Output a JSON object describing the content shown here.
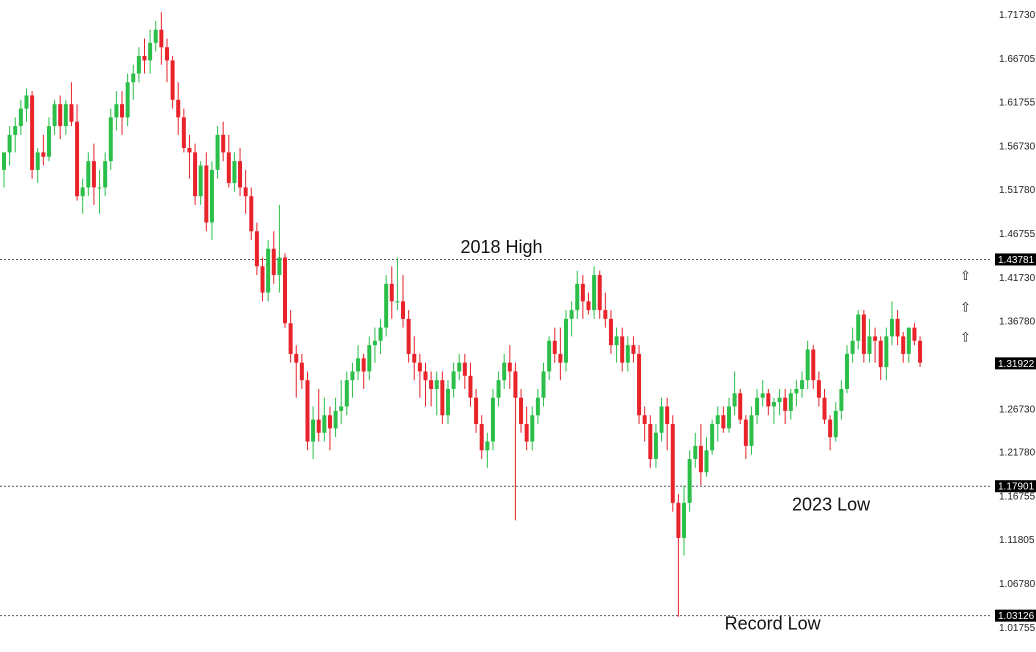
{
  "chart_data": {
    "type": "candlestick",
    "colors": {
      "up": "#2bbf4a",
      "down": "#e8232a",
      "hline": "#555555",
      "marker_bg": "#000000"
    },
    "ylim": [
      1.0126,
      1.7248
    ],
    "yticks": [
      "1.71730",
      "1.66705",
      "1.61755",
      "1.56730",
      "1.51780",
      "1.46755",
      "1.41730",
      "1.36780",
      "1.26730",
      "1.21780",
      "1.16755",
      "1.11805",
      "1.06780",
      "1.01755"
    ],
    "hlines": [
      {
        "value": 1.43781,
        "label": "1.43781"
      },
      {
        "value": 1.17901,
        "label": "1.17901"
      },
      {
        "value": 1.03126,
        "label": "1.03126"
      }
    ],
    "price_marker": {
      "value": 1.31922,
      "label": "1.31922"
    },
    "annotations": [
      {
        "text": "2018 High",
        "price": 1.452,
        "index": 83
      },
      {
        "text": "2023 Low",
        "price": 1.158,
        "index": 142
      },
      {
        "text": "Record Low",
        "price": 1.0225,
        "index": 130
      }
    ],
    "arrows": [
      {
        "glyph": "⇧",
        "price": 1.42
      },
      {
        "glyph": "⇧",
        "price": 1.384
      },
      {
        "glyph": "⇧",
        "price": 1.35
      }
    ],
    "candles": [
      [
        1.54,
        1.56,
        1.52,
        1.56
      ],
      [
        1.56,
        1.59,
        1.545,
        1.58
      ],
      [
        1.58,
        1.6,
        1.56,
        1.59
      ],
      [
        1.59,
        1.62,
        1.58,
        1.61
      ],
      [
        1.61,
        1.633,
        1.595,
        1.625
      ],
      [
        1.625,
        1.63,
        1.53,
        1.54
      ],
      [
        1.54,
        1.565,
        1.525,
        1.56
      ],
      [
        1.56,
        1.58,
        1.545,
        1.555
      ],
      [
        1.555,
        1.6,
        1.55,
        1.59
      ],
      [
        1.59,
        1.62,
        1.58,
        1.615
      ],
      [
        1.615,
        1.625,
        1.575,
        1.59
      ],
      [
        1.59,
        1.62,
        1.58,
        1.615
      ],
      [
        1.615,
        1.64,
        1.59,
        1.595
      ],
      [
        1.595,
        1.615,
        1.505,
        1.51
      ],
      [
        1.51,
        1.53,
        1.49,
        1.52
      ],
      [
        1.52,
        1.56,
        1.51,
        1.55
      ],
      [
        1.55,
        1.57,
        1.5,
        1.52
      ],
      [
        1.52,
        1.54,
        1.49,
        1.52
      ],
      [
        1.52,
        1.56,
        1.51,
        1.55
      ],
      [
        1.55,
        1.61,
        1.54,
        1.6
      ],
      [
        1.6,
        1.63,
        1.585,
        1.615
      ],
      [
        1.615,
        1.63,
        1.58,
        1.6
      ],
      [
        1.6,
        1.65,
        1.59,
        1.64
      ],
      [
        1.64,
        1.66,
        1.62,
        1.65
      ],
      [
        1.65,
        1.68,
        1.64,
        1.67
      ],
      [
        1.67,
        1.69,
        1.65,
        1.665
      ],
      [
        1.665,
        1.7,
        1.65,
        1.685
      ],
      [
        1.685,
        1.71,
        1.675,
        1.7
      ],
      [
        1.7,
        1.72,
        1.66,
        1.68
      ],
      [
        1.68,
        1.69,
        1.64,
        1.665
      ],
      [
        1.665,
        1.67,
        1.61,
        1.62
      ],
      [
        1.62,
        1.64,
        1.58,
        1.6
      ],
      [
        1.6,
        1.61,
        1.56,
        1.565
      ],
      [
        1.565,
        1.58,
        1.53,
        1.56
      ],
      [
        1.56,
        1.57,
        1.5,
        1.51
      ],
      [
        1.51,
        1.55,
        1.5,
        1.545
      ],
      [
        1.545,
        1.56,
        1.47,
        1.48
      ],
      [
        1.48,
        1.55,
        1.46,
        1.54
      ],
      [
        1.54,
        1.59,
        1.53,
        1.58
      ],
      [
        1.58,
        1.595,
        1.55,
        1.56
      ],
      [
        1.56,
        1.58,
        1.52,
        1.525
      ],
      [
        1.525,
        1.56,
        1.515,
        1.55
      ],
      [
        1.55,
        1.565,
        1.51,
        1.52
      ],
      [
        1.52,
        1.54,
        1.49,
        1.51
      ],
      [
        1.51,
        1.52,
        1.46,
        1.47
      ],
      [
        1.47,
        1.48,
        1.42,
        1.43
      ],
      [
        1.43,
        1.44,
        1.39,
        1.4
      ],
      [
        1.4,
        1.46,
        1.39,
        1.45
      ],
      [
        1.45,
        1.47,
        1.41,
        1.42
      ],
      [
        1.42,
        1.5,
        1.4,
        1.44
      ],
      [
        1.44,
        1.445,
        1.36,
        1.365
      ],
      [
        1.365,
        1.38,
        1.32,
        1.33
      ],
      [
        1.33,
        1.34,
        1.28,
        1.32
      ],
      [
        1.32,
        1.33,
        1.29,
        1.3
      ],
      [
        1.3,
        1.31,
        1.22,
        1.23
      ],
      [
        1.23,
        1.27,
        1.21,
        1.255
      ],
      [
        1.255,
        1.29,
        1.23,
        1.24
      ],
      [
        1.24,
        1.28,
        1.23,
        1.26
      ],
      [
        1.26,
        1.27,
        1.22,
        1.245
      ],
      [
        1.245,
        1.28,
        1.235,
        1.265
      ],
      [
        1.265,
        1.3,
        1.25,
        1.27
      ],
      [
        1.27,
        1.31,
        1.26,
        1.3
      ],
      [
        1.3,
        1.32,
        1.28,
        1.31
      ],
      [
        1.31,
        1.34,
        1.3,
        1.325
      ],
      [
        1.325,
        1.33,
        1.29,
        1.31
      ],
      [
        1.31,
        1.35,
        1.3,
        1.34
      ],
      [
        1.34,
        1.36,
        1.32,
        1.345
      ],
      [
        1.345,
        1.37,
        1.33,
        1.36
      ],
      [
        1.36,
        1.42,
        1.35,
        1.41
      ],
      [
        1.41,
        1.43,
        1.37,
        1.39
      ],
      [
        1.39,
        1.44,
        1.38,
        1.39
      ],
      [
        1.39,
        1.42,
        1.36,
        1.37
      ],
      [
        1.37,
        1.38,
        1.32,
        1.33
      ],
      [
        1.33,
        1.35,
        1.3,
        1.32
      ],
      [
        1.32,
        1.33,
        1.28,
        1.31
      ],
      [
        1.31,
        1.32,
        1.27,
        1.3
      ],
      [
        1.3,
        1.31,
        1.27,
        1.29
      ],
      [
        1.29,
        1.31,
        1.26,
        1.3
      ],
      [
        1.3,
        1.31,
        1.25,
        1.26
      ],
      [
        1.26,
        1.3,
        1.25,
        1.29
      ],
      [
        1.29,
        1.32,
        1.28,
        1.31
      ],
      [
        1.31,
        1.33,
        1.3,
        1.32
      ],
      [
        1.32,
        1.33,
        1.29,
        1.305
      ],
      [
        1.305,
        1.32,
        1.27,
        1.28
      ],
      [
        1.28,
        1.29,
        1.24,
        1.25
      ],
      [
        1.25,
        1.26,
        1.21,
        1.22
      ],
      [
        1.22,
        1.24,
        1.2,
        1.23
      ],
      [
        1.23,
        1.29,
        1.22,
        1.28
      ],
      [
        1.28,
        1.31,
        1.27,
        1.3
      ],
      [
        1.3,
        1.33,
        1.29,
        1.32
      ],
      [
        1.32,
        1.34,
        1.29,
        1.31
      ],
      [
        1.31,
        1.32,
        1.14,
        1.28
      ],
      [
        1.28,
        1.29,
        1.24,
        1.25
      ],
      [
        1.25,
        1.27,
        1.22,
        1.23
      ],
      [
        1.23,
        1.27,
        1.22,
        1.26
      ],
      [
        1.26,
        1.29,
        1.25,
        1.28
      ],
      [
        1.28,
        1.32,
        1.27,
        1.31
      ],
      [
        1.31,
        1.35,
        1.3,
        1.345
      ],
      [
        1.345,
        1.36,
        1.32,
        1.33
      ],
      [
        1.33,
        1.36,
        1.3,
        1.32
      ],
      [
        1.32,
        1.38,
        1.31,
        1.37
      ],
      [
        1.37,
        1.39,
        1.35,
        1.38
      ],
      [
        1.38,
        1.425,
        1.37,
        1.41
      ],
      [
        1.41,
        1.42,
        1.37,
        1.39
      ],
      [
        1.39,
        1.4,
        1.375,
        1.38
      ],
      [
        1.38,
        1.43,
        1.37,
        1.42
      ],
      [
        1.42,
        1.425,
        1.37,
        1.38
      ],
      [
        1.38,
        1.4,
        1.36,
        1.37
      ],
      [
        1.37,
        1.38,
        1.33,
        1.34
      ],
      [
        1.34,
        1.36,
        1.32,
        1.35
      ],
      [
        1.35,
        1.36,
        1.31,
        1.32
      ],
      [
        1.32,
        1.35,
        1.31,
        1.34
      ],
      [
        1.34,
        1.35,
        1.32,
        1.33
      ],
      [
        1.33,
        1.34,
        1.25,
        1.26
      ],
      [
        1.26,
        1.27,
        1.23,
        1.25
      ],
      [
        1.25,
        1.26,
        1.2,
        1.21
      ],
      [
        1.21,
        1.25,
        1.2,
        1.24
      ],
      [
        1.24,
        1.28,
        1.23,
        1.27
      ],
      [
        1.27,
        1.28,
        1.22,
        1.25
      ],
      [
        1.25,
        1.26,
        1.15,
        1.16
      ],
      [
        1.16,
        1.17,
        1.03,
        1.12
      ],
      [
        1.12,
        1.18,
        1.1,
        1.16
      ],
      [
        1.16,
        1.22,
        1.15,
        1.21
      ],
      [
        1.21,
        1.24,
        1.2,
        1.225
      ],
      [
        1.225,
        1.25,
        1.18,
        1.195
      ],
      [
        1.195,
        1.235,
        1.19,
        1.22
      ],
      [
        1.22,
        1.255,
        1.215,
        1.25
      ],
      [
        1.25,
        1.27,
        1.23,
        1.26
      ],
      [
        1.26,
        1.27,
        1.24,
        1.245
      ],
      [
        1.245,
        1.28,
        1.24,
        1.27
      ],
      [
        1.27,
        1.31,
        1.26,
        1.285
      ],
      [
        1.285,
        1.29,
        1.25,
        1.255
      ],
      [
        1.255,
        1.26,
        1.21,
        1.225
      ],
      [
        1.225,
        1.27,
        1.215,
        1.26
      ],
      [
        1.26,
        1.29,
        1.25,
        1.28
      ],
      [
        1.28,
        1.3,
        1.27,
        1.285
      ],
      [
        1.285,
        1.29,
        1.26,
        1.27
      ],
      [
        1.27,
        1.28,
        1.25,
        1.275
      ],
      [
        1.275,
        1.29,
        1.26,
        1.28
      ],
      [
        1.28,
        1.29,
        1.25,
        1.265
      ],
      [
        1.265,
        1.29,
        1.255,
        1.285
      ],
      [
        1.285,
        1.3,
        1.27,
        1.29
      ],
      [
        1.29,
        1.31,
        1.28,
        1.3
      ],
      [
        1.3,
        1.345,
        1.29,
        1.335
      ],
      [
        1.335,
        1.34,
        1.29,
        1.3
      ],
      [
        1.3,
        1.31,
        1.27,
        1.28
      ],
      [
        1.28,
        1.29,
        1.25,
        1.255
      ],
      [
        1.255,
        1.26,
        1.22,
        1.235
      ],
      [
        1.235,
        1.275,
        1.23,
        1.265
      ],
      [
        1.265,
        1.3,
        1.255,
        1.29
      ],
      [
        1.29,
        1.34,
        1.285,
        1.33
      ],
      [
        1.33,
        1.36,
        1.32,
        1.345
      ],
      [
        1.345,
        1.38,
        1.335,
        1.375
      ],
      [
        1.375,
        1.38,
        1.32,
        1.33
      ],
      [
        1.33,
        1.37,
        1.32,
        1.35
      ],
      [
        1.35,
        1.36,
        1.32,
        1.345
      ],
      [
        1.345,
        1.35,
        1.3,
        1.315
      ],
      [
        1.315,
        1.36,
        1.3,
        1.35
      ],
      [
        1.35,
        1.39,
        1.34,
        1.37
      ],
      [
        1.37,
        1.38,
        1.34,
        1.35
      ],
      [
        1.35,
        1.355,
        1.32,
        1.33
      ],
      [
        1.33,
        1.36,
        1.32,
        1.36
      ],
      [
        1.36,
        1.365,
        1.34,
        1.345
      ],
      [
        1.345,
        1.35,
        1.315,
        1.32
      ]
    ]
  }
}
